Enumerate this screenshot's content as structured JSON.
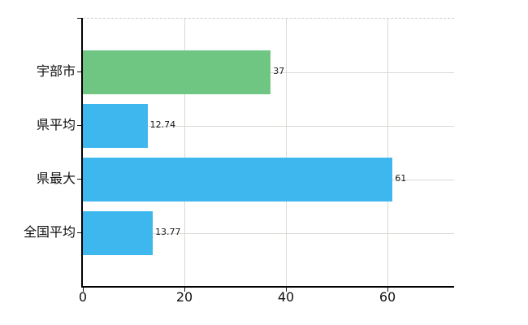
{
  "chart_data": {
    "type": "bar",
    "orientation": "horizontal",
    "title": "",
    "xlabel": "",
    "ylabel": "",
    "categories": [
      "宇部市",
      "県平均",
      "県最大",
      "全国平均"
    ],
    "values": [
      37,
      12.74,
      61,
      13.77
    ],
    "value_labels": [
      "37",
      "12.74",
      "61",
      "13.77"
    ],
    "bar_colors": [
      "#6fc683",
      "#3eb7ee",
      "#3eb7ee",
      "#3eb7ee"
    ],
    "xticks": [
      0,
      20,
      40,
      60
    ],
    "xtick_labels": [
      "0",
      "20",
      "40",
      "60"
    ],
    "xlim": [
      0,
      73.12
    ],
    "grid": true,
    "legend": "none",
    "colors": {
      "axis": "#000000",
      "gridline": "#d6dcd4",
      "top_border_dashed": "#cccccc",
      "text": "#111111",
      "background": "#ffffff"
    }
  }
}
